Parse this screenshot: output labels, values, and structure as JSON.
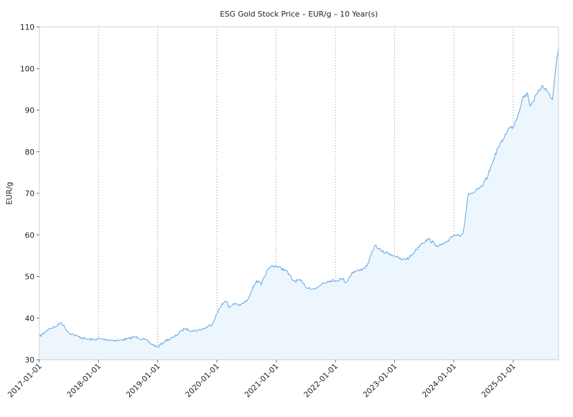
{
  "chart_data": {
    "type": "area",
    "title": "ESG Gold Stock Price – EUR/g – 10 Year(s)",
    "xlabel": "",
    "ylabel": "EUR/g",
    "ylim": [
      30,
      110
    ],
    "xlim": [
      "2017-01-01",
      "2025-10-08"
    ],
    "y_ticks": [
      30,
      40,
      50,
      60,
      70,
      80,
      90,
      100,
      110
    ],
    "x_ticks": [
      "2017-01-01",
      "2018-01-01",
      "2019-01-01",
      "2020-01-01",
      "2021-01-01",
      "2022-01-01",
      "2023-01-01",
      "2024-01-01",
      "2025-01-01"
    ],
    "grid": "vertical dotted lines at x ticks",
    "legend": "none",
    "line_color": "#5ba4e6",
    "fill_color": "#eef6fd",
    "series": [
      {
        "x": [
          "2017-01-01",
          "2017-02-01",
          "2017-03-01",
          "2017-04-15",
          "2017-05-15",
          "2017-07-01",
          "2017-08-01",
          "2017-09-01",
          "2017-10-15",
          "2017-12-01",
          "2018-01-01",
          "2018-03-01",
          "2018-05-01",
          "2018-07-01",
          "2018-08-15",
          "2018-10-15",
          "2018-11-15",
          "2019-01-01",
          "2019-02-15",
          "2019-04-15",
          "2019-06-01",
          "2019-06-15",
          "2019-08-01",
          "2019-09-01",
          "2019-10-15",
          "2019-12-01",
          "2020-01-01",
          "2020-02-01",
          "2020-03-01",
          "2020-03-15",
          "2020-04-15",
          "2020-05-15",
          "2020-07-01",
          "2020-08-01",
          "2020-09-01",
          "2020-10-01",
          "2020-11-01",
          "2020-12-01",
          "2021-01-01",
          "2021-03-01",
          "2021-04-15",
          "2021-06-01",
          "2021-07-01",
          "2021-09-01",
          "2021-10-15",
          "2021-12-01",
          "2022-01-01",
          "2022-02-15",
          "2022-03-08",
          "2022-04-15",
          "2022-06-01",
          "2022-07-15",
          "2022-09-01",
          "2022-10-15",
          "2022-12-01",
          "2023-01-01",
          "2023-02-15",
          "2023-04-01",
          "2023-05-15",
          "2023-06-15",
          "2023-08-01",
          "2023-09-15",
          "2023-10-15",
          "2023-12-01",
          "2024-01-01",
          "2024-02-15",
          "2024-03-01",
          "2024-04-01",
          "2024-05-01",
          "2024-06-01",
          "2024-07-01",
          "2024-08-01",
          "2024-09-01",
          "2024-10-01",
          "2024-11-01",
          "2024-12-01",
          "2025-01-01",
          "2025-02-01",
          "2025-03-01",
          "2025-04-01",
          "2025-04-15",
          "2025-05-01",
          "2025-06-01",
          "2025-07-01",
          "2025-08-01",
          "2025-09-01",
          "2025-09-20",
          "2025-10-08"
        ],
        "values": [
          35.5,
          36.5,
          37.5,
          38.0,
          39.0,
          36.5,
          36.0,
          35.5,
          35.0,
          34.8,
          35.0,
          34.8,
          34.6,
          35.0,
          35.5,
          34.8,
          34.0,
          33.0,
          34.5,
          35.5,
          37.0,
          37.5,
          37.0,
          37.0,
          37.5,
          38.5,
          41.0,
          43.5,
          44.0,
          42.5,
          43.5,
          43.0,
          44.0,
          46.5,
          49.0,
          48.0,
          51.0,
          52.5,
          52.5,
          51.5,
          49.0,
          49.0,
          47.5,
          47.0,
          48.5,
          49.0,
          49.0,
          49.5,
          48.5,
          51.0,
          51.5,
          52.5,
          57.5,
          56.0,
          55.5,
          55.0,
          54.0,
          54.5,
          56.5,
          58.0,
          59.0,
          57.5,
          57.5,
          58.5,
          60.0,
          60.0,
          61.0,
          70.0,
          70.0,
          71.0,
          72.0,
          74.5,
          78.0,
          81.0,
          83.0,
          85.5,
          86.0,
          89.0,
          93.0,
          94.0,
          91.0,
          92.0,
          94.0,
          96.0,
          94.5,
          92.5,
          100.0,
          105.0
        ]
      }
    ]
  }
}
